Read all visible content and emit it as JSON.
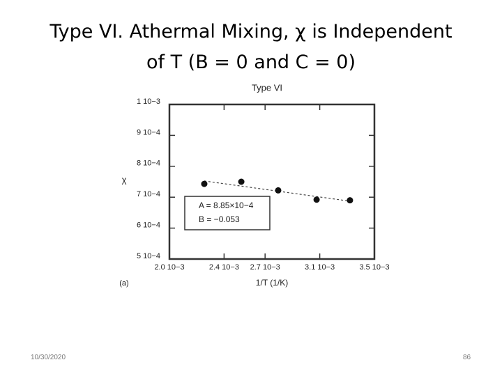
{
  "title_lines": [
    "Type VI. Athermal Mixing, χ is Independent",
    "of T (B = 0 and C = 0)"
  ],
  "date": "10/30/2020",
  "page_number": "86",
  "chart_data": {
    "type": "scatter",
    "title": "Type VI",
    "x_label": "1/T (1/K)",
    "y_label": "χ",
    "panel_label": "(a)",
    "annotations": [
      "A = 8.85×10−4",
      "B = −0.053"
    ],
    "x": [
      0.002255,
      0.002526,
      0.002796,
      0.003077,
      0.003321
    ],
    "values": [
      0.000743,
      0.00075,
      0.000722,
      0.000692,
      0.00069
    ],
    "color": "#111111",
    "trend_line": true,
    "xlim": [
      0.002,
      0.0035
    ],
    "ylim": [
      0.0005,
      0.001
    ],
    "xticks": [
      {
        "value": 0.002,
        "label": "2.0 10−3"
      },
      {
        "value": 0.0024,
        "label": "2.4 10−3"
      },
      {
        "value": 0.0027,
        "label": "2.7 10−3"
      },
      {
        "value": 0.0031,
        "label": "3.1 10−3"
      },
      {
        "value": 0.0035,
        "label": "3.5 10−3"
      }
    ],
    "yticks": [
      {
        "value": 0.001,
        "label": "1 10−3"
      },
      {
        "value": 0.0009,
        "label": "9 10−4"
      },
      {
        "value": 0.0008,
        "label": "8 10−4"
      },
      {
        "value": 0.0007,
        "label": "7 10−4"
      },
      {
        "value": 0.0006,
        "label": "6 10−4"
      },
      {
        "value": 0.0005,
        "label": "5 10−4"
      }
    ]
  }
}
